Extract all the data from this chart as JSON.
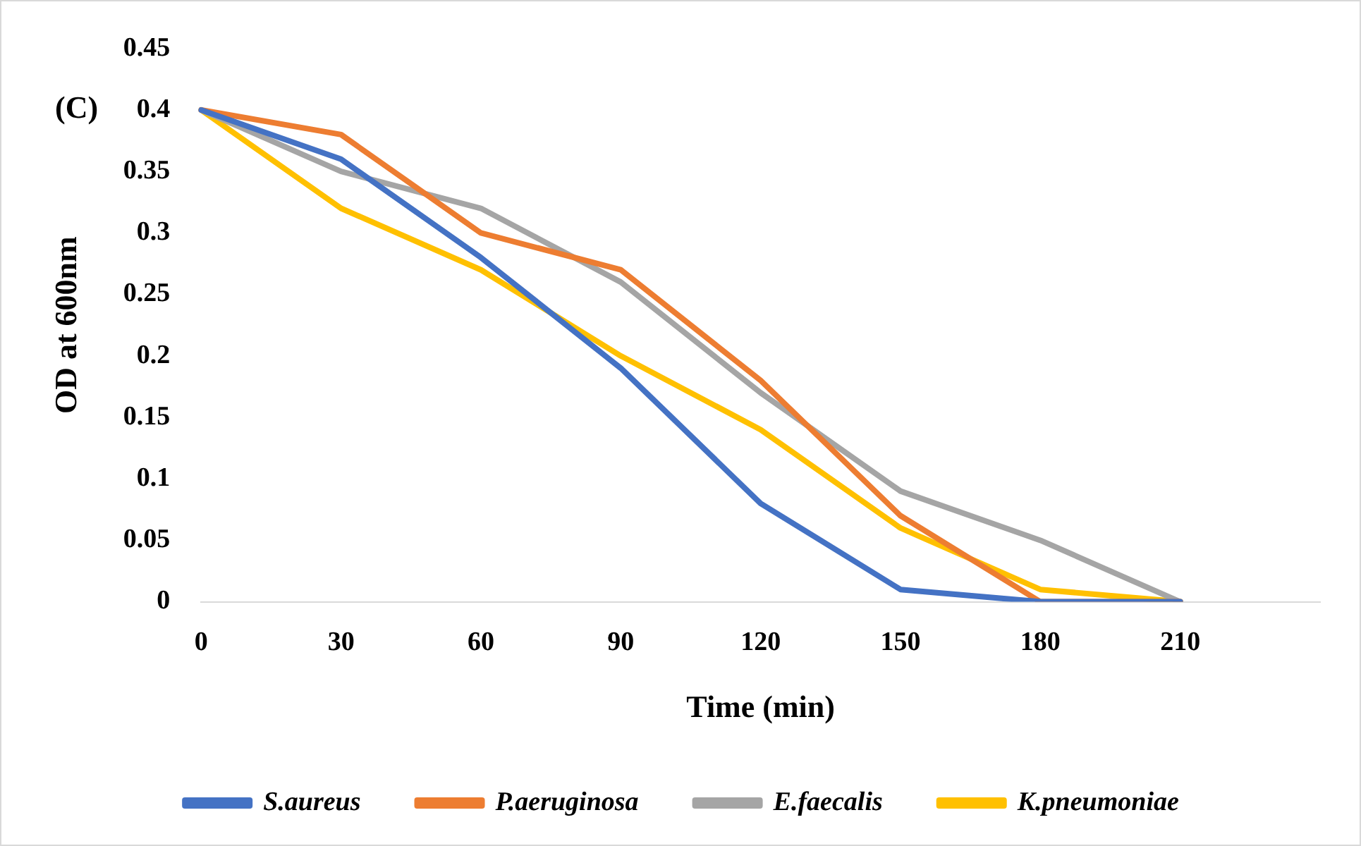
{
  "chart_data": {
    "type": "line",
    "xlabel": "Time (min)",
    "ylabel": "OD at 600nm",
    "annotations": [
      "(C)"
    ],
    "categories": [
      "0",
      "30",
      "60",
      "90",
      "120",
      "150",
      "180",
      "210",
      null
    ],
    "series": [
      {
        "name": "S.aureus",
        "color": "#4472c4",
        "values": [
          0.4,
          0.36,
          0.28,
          0.19,
          0.08,
          0.01,
          0,
          0,
          null
        ]
      },
      {
        "name": "P.aeruginosa",
        "color": "#ed7d31",
        "values": [
          0.4,
          0.38,
          0.3,
          0.27,
          0.18,
          0.07,
          0,
          0,
          null
        ]
      },
      {
        "name": "E.faecalis",
        "color": "#a5a5a5",
        "values": [
          0.4,
          0.35,
          0.32,
          0.26,
          0.17,
          0.09,
          0.05,
          0,
          null
        ]
      },
      {
        "name": "K.pneumoniae",
        "color": "#ffc000",
        "values": [
          0.4,
          0.32,
          0.27,
          0.2,
          0.14,
          0.06,
          0.01,
          0,
          null
        ]
      }
    ],
    "ylim": [
      0,
      0.45
    ],
    "yticks": [
      0,
      0.05,
      0.1,
      0.15,
      0.2,
      0.25,
      0.3,
      0.35,
      0.4,
      0.45
    ],
    "grid": false,
    "legend": "bottom",
    "marker": "none",
    "line_style": "solid"
  }
}
